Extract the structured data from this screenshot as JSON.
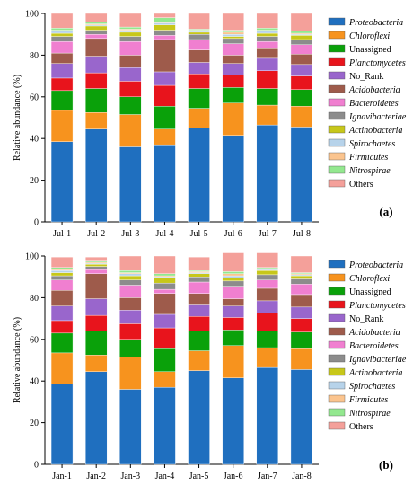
{
  "chart_data": [
    {
      "type": "bar",
      "stacked": true,
      "panel_label": "(a)",
      "ylabel": "Relative abundance (%)",
      "ylim": [
        0,
        100
      ],
      "yticks": [
        0,
        20,
        40,
        60,
        80,
        100
      ],
      "categories": [
        "Jul-1",
        "Jul-2",
        "Jul-3",
        "Jul-4",
        "Jul-5",
        "Jul-6",
        "Jul-7",
        "Jul-8"
      ],
      "legend_position": "right",
      "series": [
        {
          "name": "Proteobacteria",
          "italic": true,
          "color": "#1f6fbf",
          "values": [
            38.5,
            44.5,
            36,
            37,
            45,
            41.5,
            46.5,
            45.5
          ]
        },
        {
          "name": "Chloroflexi",
          "italic": true,
          "color": "#f7931e",
          "values": [
            15,
            8,
            15.5,
            7.5,
            9.5,
            15.5,
            9.5,
            10
          ]
        },
        {
          "name": "Unassigned",
          "italic": false,
          "color": "#0aa10a",
          "values": [
            9.5,
            11.5,
            8.5,
            11,
            9.5,
            7.5,
            8,
            8
          ]
        },
        {
          "name": "Planctomycetes",
          "italic": true,
          "color": "#e8141c",
          "values": [
            6,
            7.5,
            7.5,
            10,
            7,
            6,
            8.5,
            6.5
          ]
        },
        {
          "name": "No_Rank",
          "italic": false,
          "color": "#9966cc",
          "values": [
            7,
            8,
            6.5,
            6.5,
            5.5,
            5.5,
            6,
            5.5
          ]
        },
        {
          "name": "Acidobacteria",
          "italic": true,
          "color": "#9e5b4b",
          "values": [
            5,
            8.5,
            6,
            15.5,
            6,
            4,
            5,
            5
          ]
        },
        {
          "name": "Bacteroidetes",
          "italic": true,
          "color": "#f07fd0",
          "values": [
            5.5,
            2,
            6.5,
            2,
            5,
            5.5,
            3,
            4.5
          ]
        },
        {
          "name": "Ignavibacteriae",
          "italic": true,
          "color": "#8c8c8c",
          "values": [
            2.5,
            2,
            2.5,
            2.5,
            2.5,
            2.5,
            2.5,
            2.5
          ]
        },
        {
          "name": "Actinobacteria",
          "italic": true,
          "color": "#c7c71a",
          "values": [
            1.5,
            2,
            2,
            2.5,
            1,
            1,
            1.5,
            2
          ]
        },
        {
          "name": "Spirochaetes",
          "italic": true,
          "color": "#b7d3ea",
          "values": [
            1,
            0.5,
            1,
            1,
            0.5,
            1,
            1,
            0.5
          ]
        },
        {
          "name": "Firmicutes",
          "italic": true,
          "color": "#fbc48e",
          "values": [
            0.5,
            0.5,
            0.5,
            0.5,
            0.5,
            1,
            0.5,
            0.5
          ]
        },
        {
          "name": "Nitrospirae",
          "italic": true,
          "color": "#93e88f",
          "values": [
            1,
            1,
            1,
            2,
            0.5,
            1,
            1,
            1
          ]
        },
        {
          "name": "Others",
          "italic": false,
          "color": "#f4a09a",
          "values": [
            7,
            4,
            6.5,
            2,
            7.5,
            8,
            7,
            8.5
          ]
        }
      ]
    },
    {
      "type": "bar",
      "stacked": true,
      "panel_label": "(b)",
      "ylabel": "Relative abundance (%)",
      "ylim": [
        0,
        100
      ],
      "yticks": [
        0,
        20,
        40,
        60,
        80,
        100
      ],
      "categories": [
        "Jan-1",
        "Jan-2",
        "Jan-3",
        "Jan-4",
        "Jan-5",
        "Jan-6",
        "Jan-7",
        "Jan-8"
      ],
      "legend_position": "right",
      "series": [
        {
          "name": "Proteobacteria",
          "italic": true,
          "color": "#1f6fbf",
          "values": [
            38.5,
            44.5,
            36,
            37,
            45,
            41.5,
            46.5,
            45.5
          ]
        },
        {
          "name": "Chloroflexi",
          "italic": true,
          "color": "#f7931e",
          "values": [
            15,
            8,
            15.5,
            7.5,
            9.5,
            15.5,
            9.5,
            10
          ]
        },
        {
          "name": "Unassigned",
          "italic": false,
          "color": "#0aa10a",
          "values": [
            9.5,
            11.5,
            8.5,
            11,
            9.5,
            7.5,
            8,
            8
          ]
        },
        {
          "name": "Planctomycetes",
          "italic": true,
          "color": "#e8141c",
          "values": [
            6,
            7.5,
            7.5,
            10,
            7,
            6,
            8.5,
            6.5
          ]
        },
        {
          "name": "No_Rank",
          "italic": false,
          "color": "#9966cc",
          "values": [
            7,
            8,
            6.5,
            6.5,
            5.5,
            5.5,
            6,
            5.5
          ]
        },
        {
          "name": "Acidobacteria",
          "italic": true,
          "color": "#9e5b4b",
          "values": [
            7.5,
            12,
            6,
            10,
            5.5,
            3.5,
            6,
            6
          ]
        },
        {
          "name": "Bacteroidetes",
          "italic": true,
          "color": "#f07fd0",
          "values": [
            5,
            2,
            6,
            2,
            5.5,
            6,
            4,
            5
          ]
        },
        {
          "name": "Ignavibacteriae",
          "italic": true,
          "color": "#8c8c8c",
          "values": [
            2,
            1.5,
            2.5,
            3,
            2.5,
            2.5,
            2.5,
            2.5
          ]
        },
        {
          "name": "Actinobacteria",
          "italic": true,
          "color": "#c7c71a",
          "values": [
            1.5,
            1,
            2,
            2.5,
            1.5,
            1.5,
            2,
            1.5
          ]
        },
        {
          "name": "Spirochaetes",
          "italic": true,
          "color": "#b7d3ea",
          "values": [
            1,
            0.5,
            1,
            0.5,
            0.5,
            1,
            0.5,
            0.5
          ]
        },
        {
          "name": "Firmicutes",
          "italic": true,
          "color": "#fbc48e",
          "values": [
            0.5,
            0.5,
            0.5,
            0.5,
            0.5,
            1,
            0.5,
            0.5
          ]
        },
        {
          "name": "Nitrospirae",
          "italic": true,
          "color": "#93e88f",
          "values": [
            1,
            0.5,
            1,
            1,
            0.5,
            1,
            0.5,
            0.5
          ]
        },
        {
          "name": "Others",
          "italic": false,
          "color": "#f4a09a",
          "values": [
            5,
            2,
            7,
            8.5,
            6.5,
            9,
            7,
            8
          ]
        }
      ]
    }
  ]
}
